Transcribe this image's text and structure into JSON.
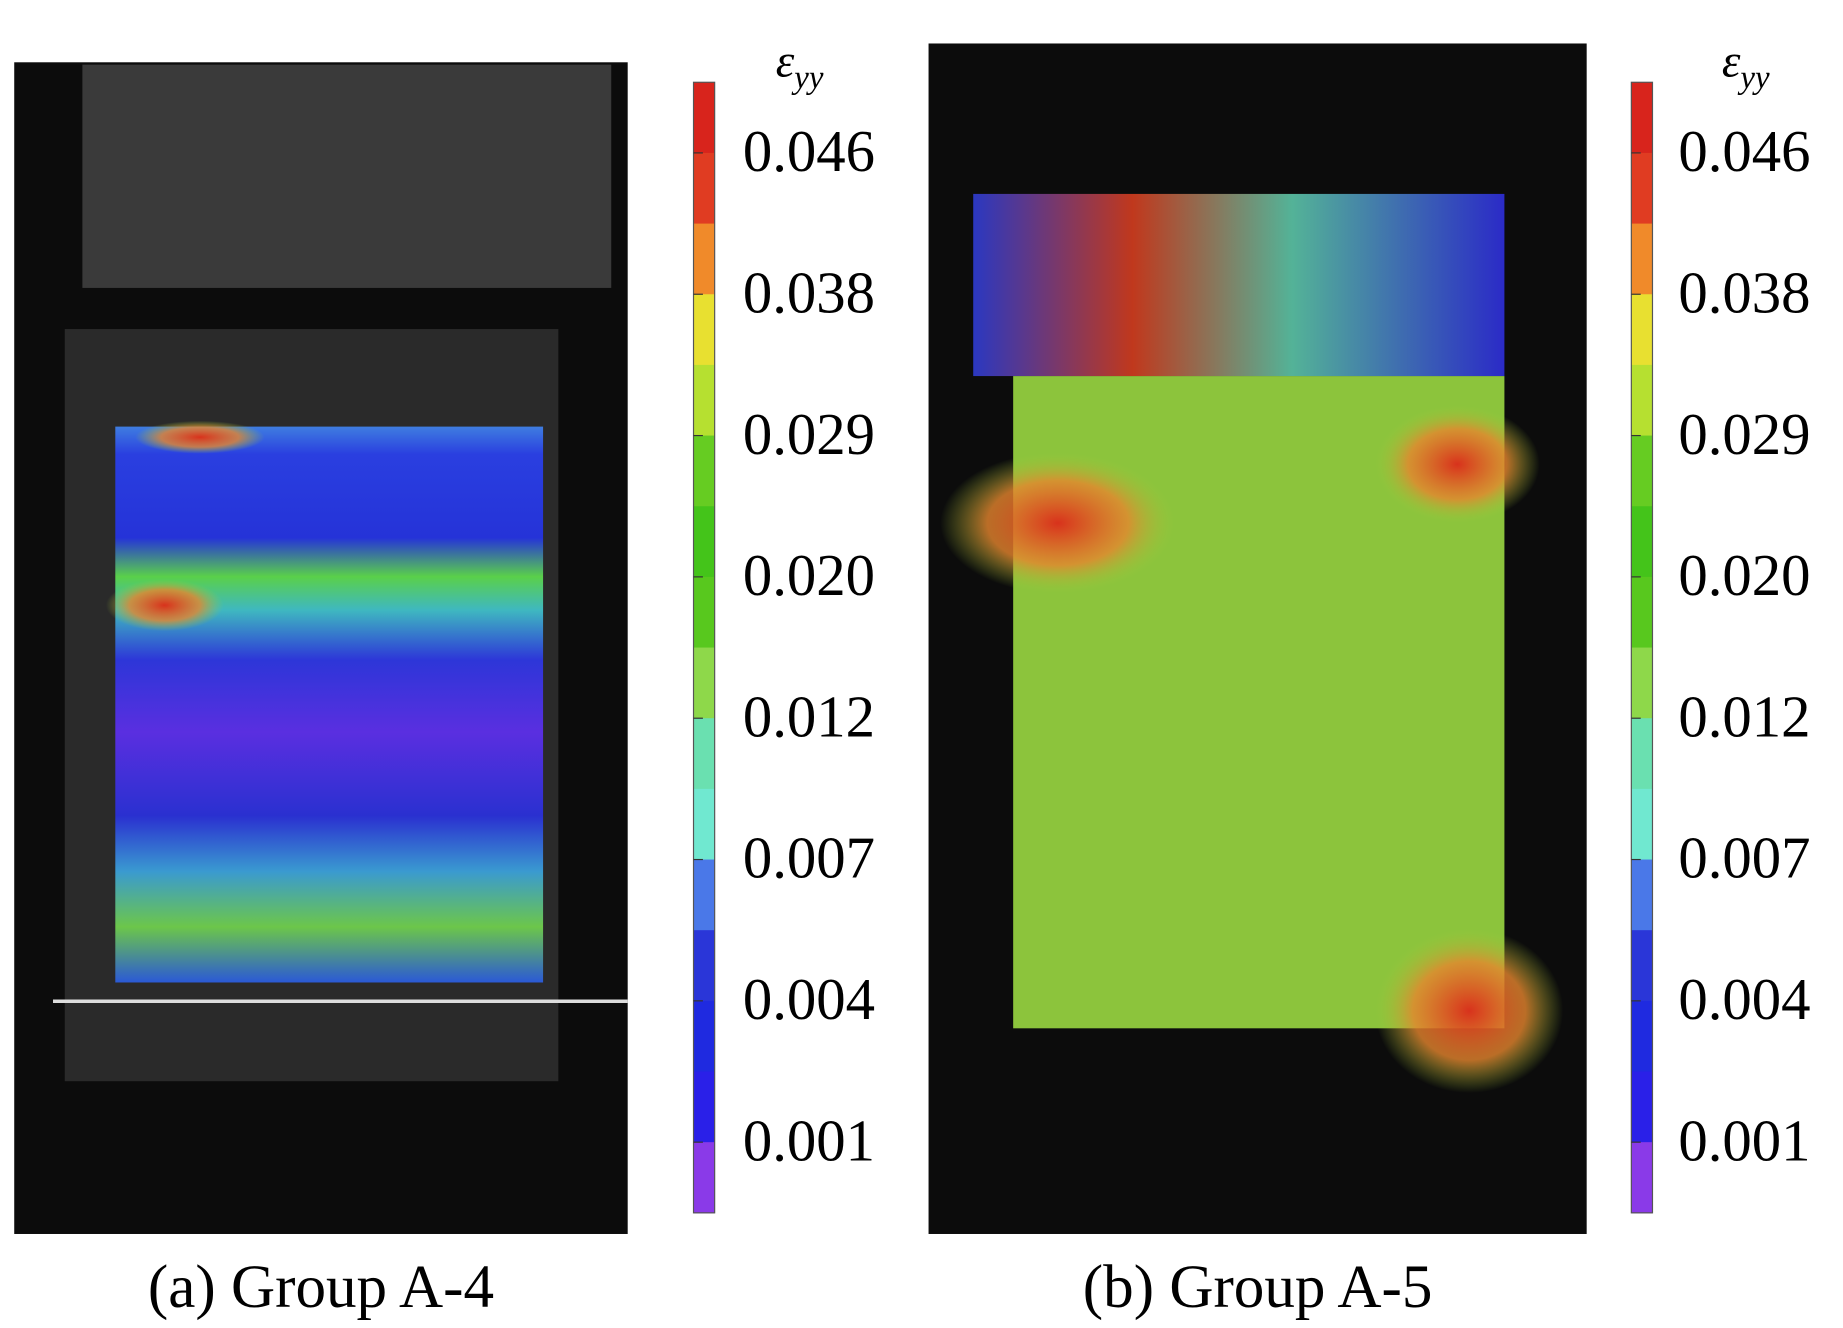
{
  "panels": [
    {
      "caption": "(a) Group A-4",
      "colorbar": {
        "symbol": "ε",
        "subscript": "yy",
        "ticks": [
          "0.046",
          "0.038",
          "0.029",
          "0.020",
          "0.012",
          "0.007",
          "0.004",
          "0.001"
        ]
      }
    },
    {
      "caption": "(b) Group A-5",
      "colorbar": {
        "symbol": "ε",
        "subscript": "yy",
        "ticks": [
          "0.046",
          "0.038",
          "0.029",
          "0.020",
          "0.012",
          "0.007",
          "0.004",
          "0.001"
        ]
      }
    }
  ]
}
